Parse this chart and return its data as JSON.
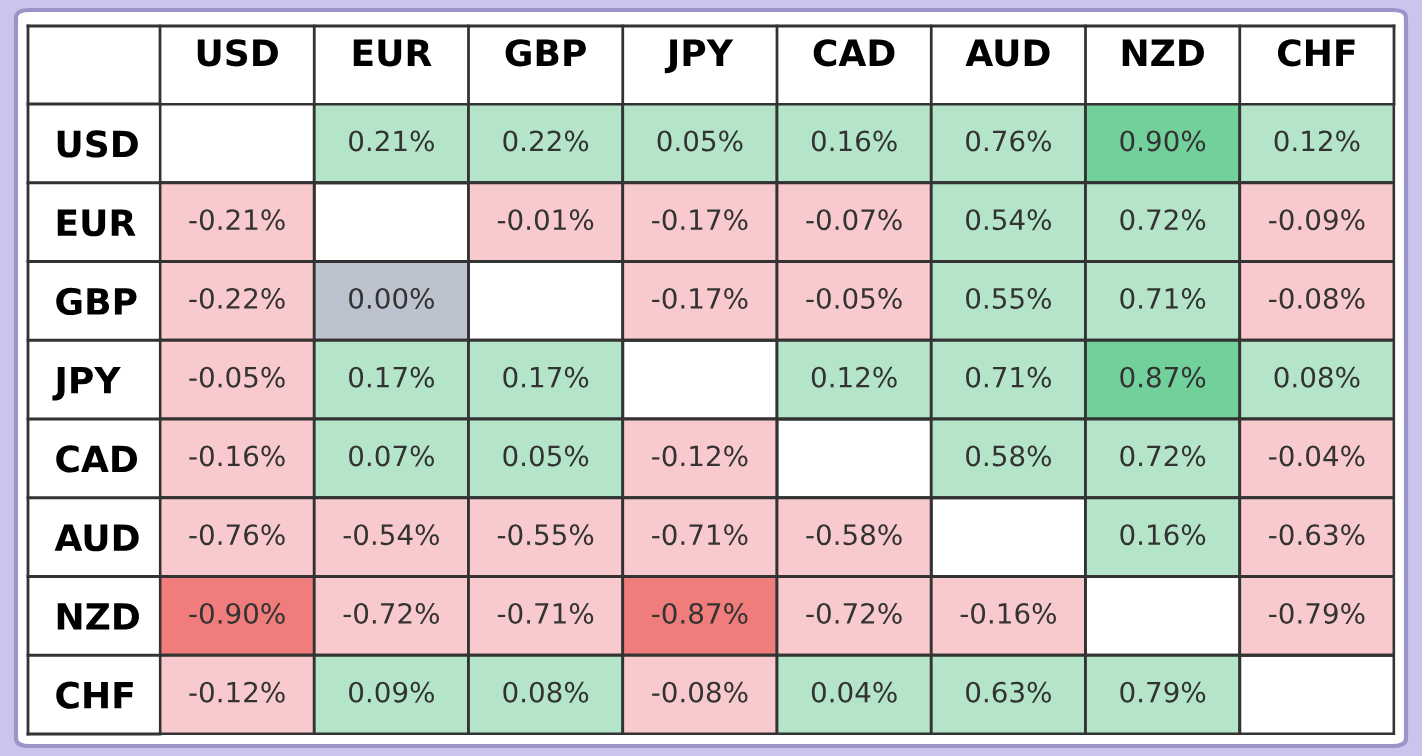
{
  "chart_data": {
    "type": "heatmap",
    "categories": [
      "USD",
      "EUR",
      "GBP",
      "JPY",
      "CAD",
      "AUD",
      "NZD",
      "CHF"
    ],
    "y_categories": [
      "USD",
      "EUR",
      "GBP",
      "JPY",
      "CAD",
      "AUD",
      "NZD",
      "CHF"
    ],
    "cells": [
      [
        null,
        0.21,
        0.22,
        0.05,
        0.16,
        0.76,
        0.9,
        0.12
      ],
      [
        -0.21,
        null,
        -0.01,
        -0.17,
        -0.07,
        0.54,
        0.72,
        -0.09
      ],
      [
        -0.22,
        0.0,
        null,
        -0.17,
        -0.05,
        0.55,
        0.71,
        -0.08
      ],
      [
        -0.05,
        0.17,
        0.17,
        null,
        0.12,
        0.71,
        0.87,
        0.08
      ],
      [
        -0.16,
        0.07,
        0.05,
        -0.12,
        null,
        0.58,
        0.72,
        -0.04
      ],
      [
        -0.76,
        -0.54,
        -0.55,
        -0.71,
        -0.58,
        null,
        0.16,
        -0.63
      ],
      [
        -0.9,
        -0.72,
        -0.71,
        -0.87,
        -0.72,
        -0.16,
        null,
        -0.79
      ],
      [
        -0.12,
        0.09,
        0.08,
        -0.08,
        0.04,
        0.63,
        0.79,
        null
      ]
    ],
    "cell_labels": [
      [
        null,
        "0.21%",
        "0.22%",
        "0.05%",
        "0.16%",
        "0.76%",
        "0.90%",
        "0.12%"
      ],
      [
        "-0.21%",
        null,
        "-0.01%",
        "-0.17%",
        "-0.07%",
        "0.54%",
        "0.72%",
        "-0.09%"
      ],
      [
        "-0.22%",
        "0.00%",
        null,
        "-0.17%",
        "-0.05%",
        "0.55%",
        "0.71%",
        "-0.08%"
      ],
      [
        "-0.05%",
        "0.17%",
        "0.17%",
        null,
        "0.12%",
        "0.71%",
        "0.87%",
        "0.08%"
      ],
      [
        "-0.16%",
        "0.07%",
        "0.05%",
        "-0.12%",
        null,
        "0.58%",
        "0.72%",
        "-0.04%"
      ],
      [
        "-0.76%",
        "-0.54%",
        "-0.55%",
        "-0.71%",
        "-0.58%",
        null,
        "0.16%",
        "-0.63%"
      ],
      [
        "-0.90%",
        "-0.72%",
        "-0.71%",
        "-0.87%",
        "-0.72%",
        "-0.16%",
        null,
        "-0.79%"
      ],
      [
        "-0.12%",
        "0.09%",
        "0.08%",
        "-0.08%",
        "0.04%",
        "0.63%",
        "0.79%",
        null
      ]
    ]
  }
}
